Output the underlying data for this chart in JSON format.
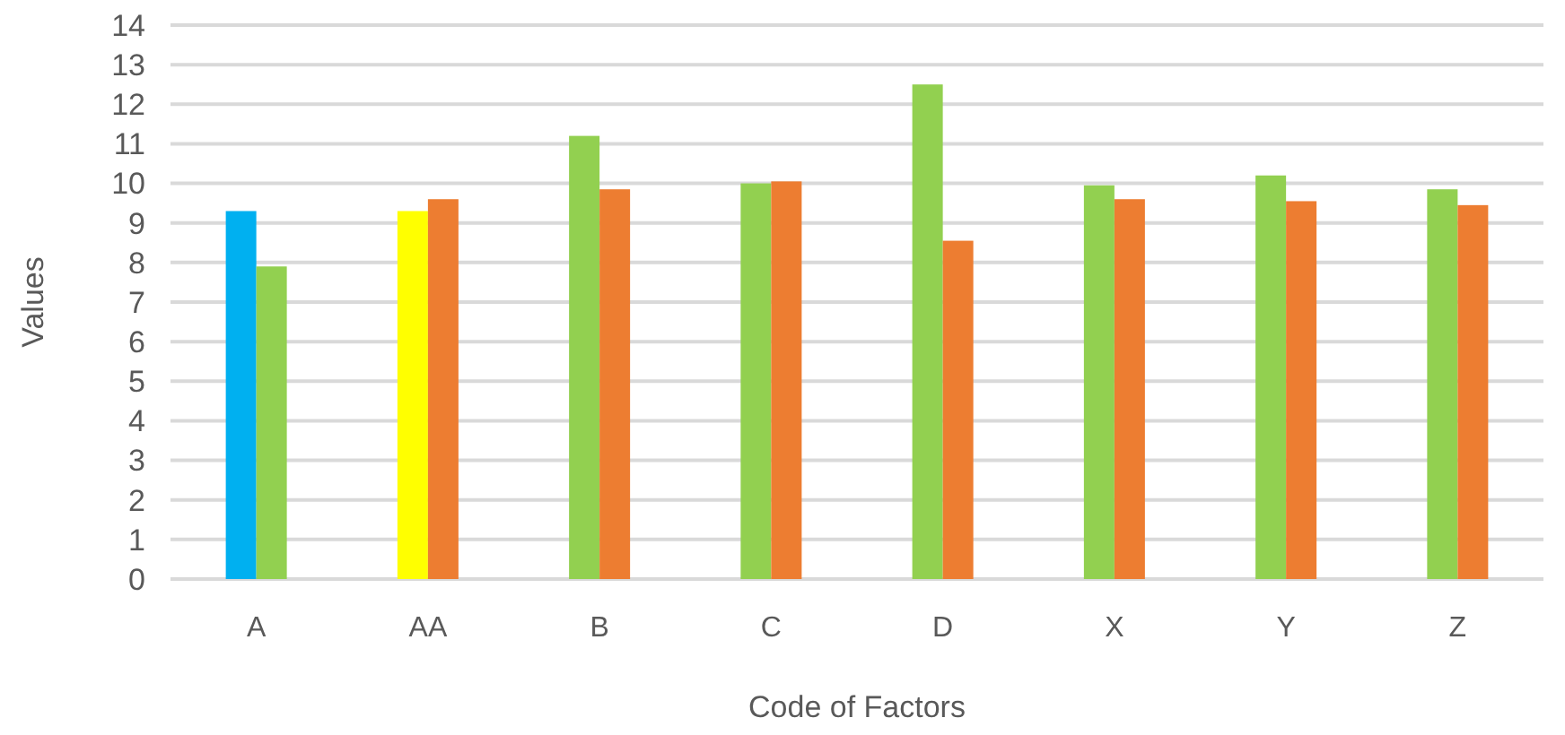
{
  "chart_data": {
    "type": "bar",
    "xlabel": "Code of Factors",
    "ylabel": "Values",
    "categories": [
      "A",
      "AA",
      "B",
      "C",
      "D",
      "X",
      "Y",
      "Z"
    ],
    "series": [
      {
        "colors": [
          "#00b0f0",
          "#ffff00",
          "#92d050",
          "#92d050",
          "#92d050",
          "#92d050",
          "#92d050",
          "#92d050"
        ],
        "values": [
          9.3,
          9.3,
          11.2,
          10,
          12.5,
          9.95,
          10.2,
          9.85
        ]
      },
      {
        "colors": [
          "#92d050",
          "#ed7d31",
          "#ed7d31",
          "#ed7d31",
          "#ed7d31",
          "#ed7d31",
          "#ed7d31",
          "#ed7d31"
        ],
        "values": [
          7.9,
          9.6,
          9.85,
          10.05,
          8.55,
          9.6,
          9.55,
          9.45
        ]
      }
    ],
    "ylim": [
      0,
      14
    ],
    "yticks": [
      0,
      1,
      2,
      3,
      4,
      5,
      6,
      7,
      8,
      9,
      10,
      11,
      12,
      13,
      14
    ],
    "grid": "y"
  }
}
